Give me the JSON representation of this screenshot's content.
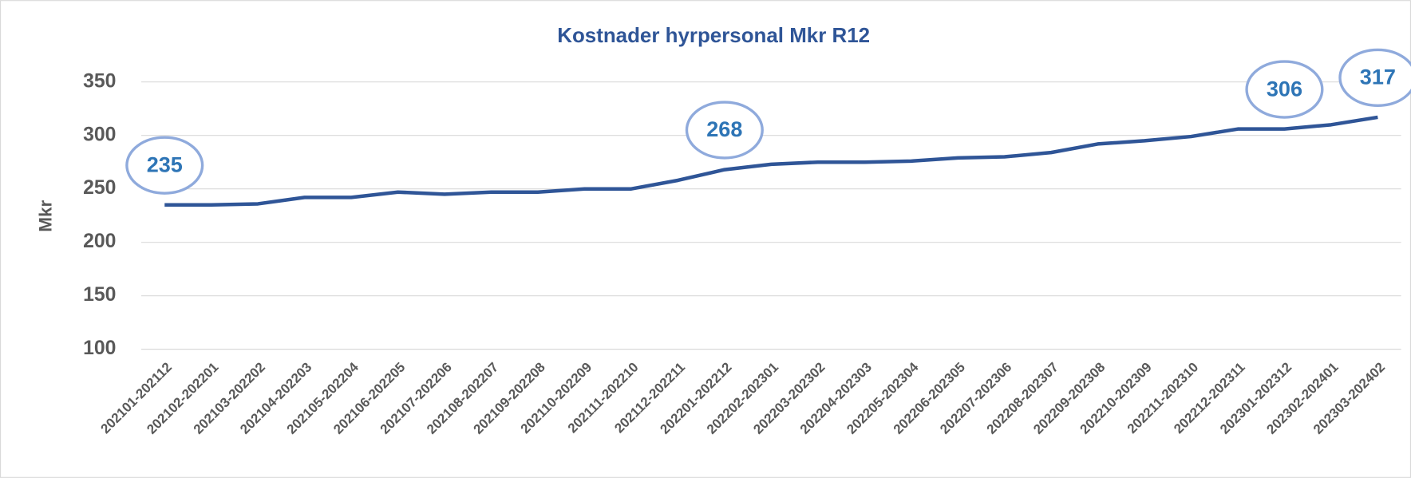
{
  "chart_data": {
    "type": "line",
    "title": "Kostnader hyrpersonal Mkr R12",
    "y_label": "Mkr",
    "categories": [
      "202101-202112",
      "202102-202201",
      "202103-202202",
      "202104-202203",
      "202105-202204",
      "202106-202205",
      "202107-202206",
      "202108-202207",
      "202109-202208",
      "202110-202209",
      "202111-202210",
      "202112-202211",
      "202201-202212",
      "202202-202301",
      "202203-202302",
      "202204-202303",
      "202205-202304",
      "202206-202305",
      "202207-202306",
      "202208-202307",
      "202209-202308",
      "202210-202309",
      "202211-202310",
      "202212-202311",
      "202301-202312",
      "202302-202401",
      "202303-202402"
    ],
    "series": [
      {
        "name": "Kostnader hyrpersonal",
        "color": "#2f5597",
        "values": [
          235,
          235,
          236,
          242,
          242,
          247,
          245,
          247,
          247,
          250,
          250,
          258,
          268,
          273,
          275,
          275,
          276,
          279,
          280,
          284,
          292,
          295,
          299,
          306,
          306,
          310,
          317
        ]
      }
    ],
    "data_labels": [
      0,
      12,
      24,
      26
    ],
    "ylim": [
      100,
      350
    ],
    "yticks": [
      100,
      150,
      200,
      250,
      300,
      350
    ],
    "grid": true
  }
}
